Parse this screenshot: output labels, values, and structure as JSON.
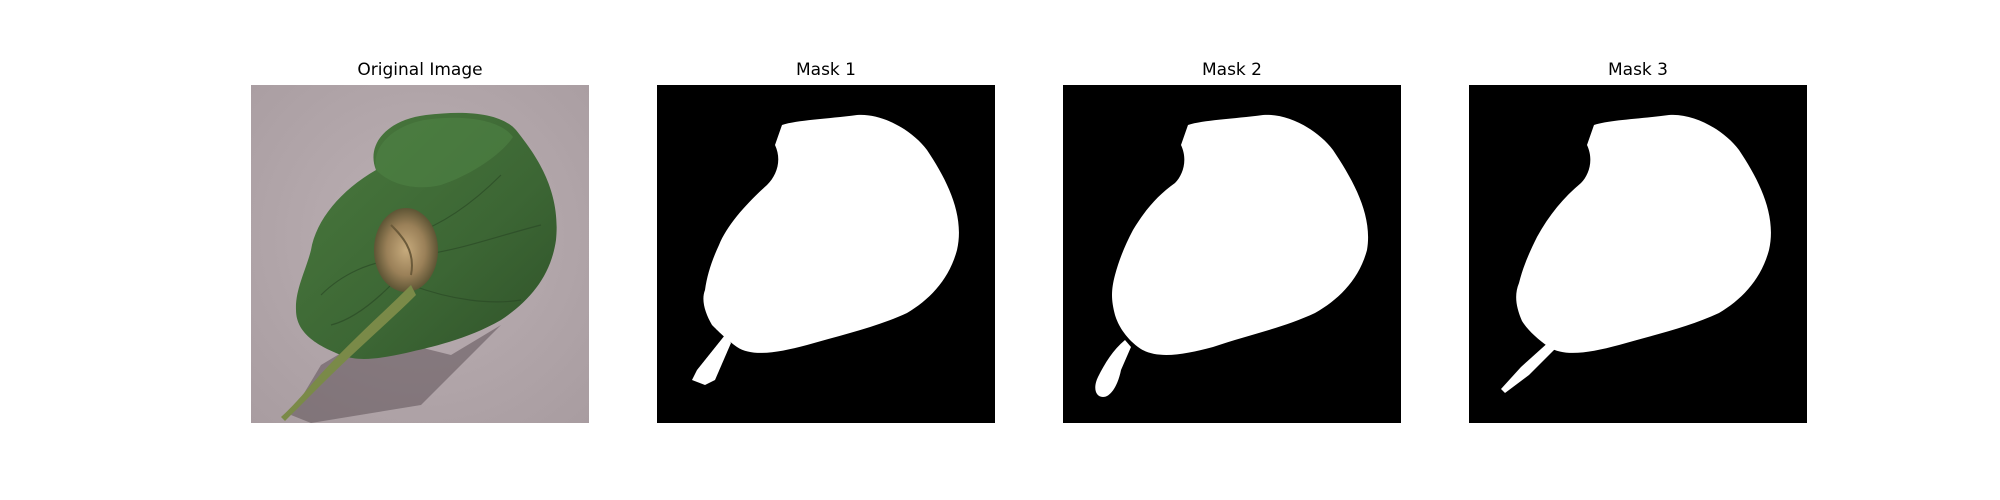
{
  "figure": {
    "panels": [
      {
        "title": "Original Image",
        "kind": "photo"
      },
      {
        "title": "Mask 1",
        "kind": "mask"
      },
      {
        "title": "Mask 2",
        "kind": "mask"
      },
      {
        "title": "Mask 3",
        "kind": "mask"
      }
    ]
  },
  "colors": {
    "background_gray": "#b3a6aa",
    "leaf_green": "#3f6a35",
    "lesion_brown": "#9a8058",
    "mask_background": "#000000",
    "mask_foreground": "#ffffff"
  }
}
